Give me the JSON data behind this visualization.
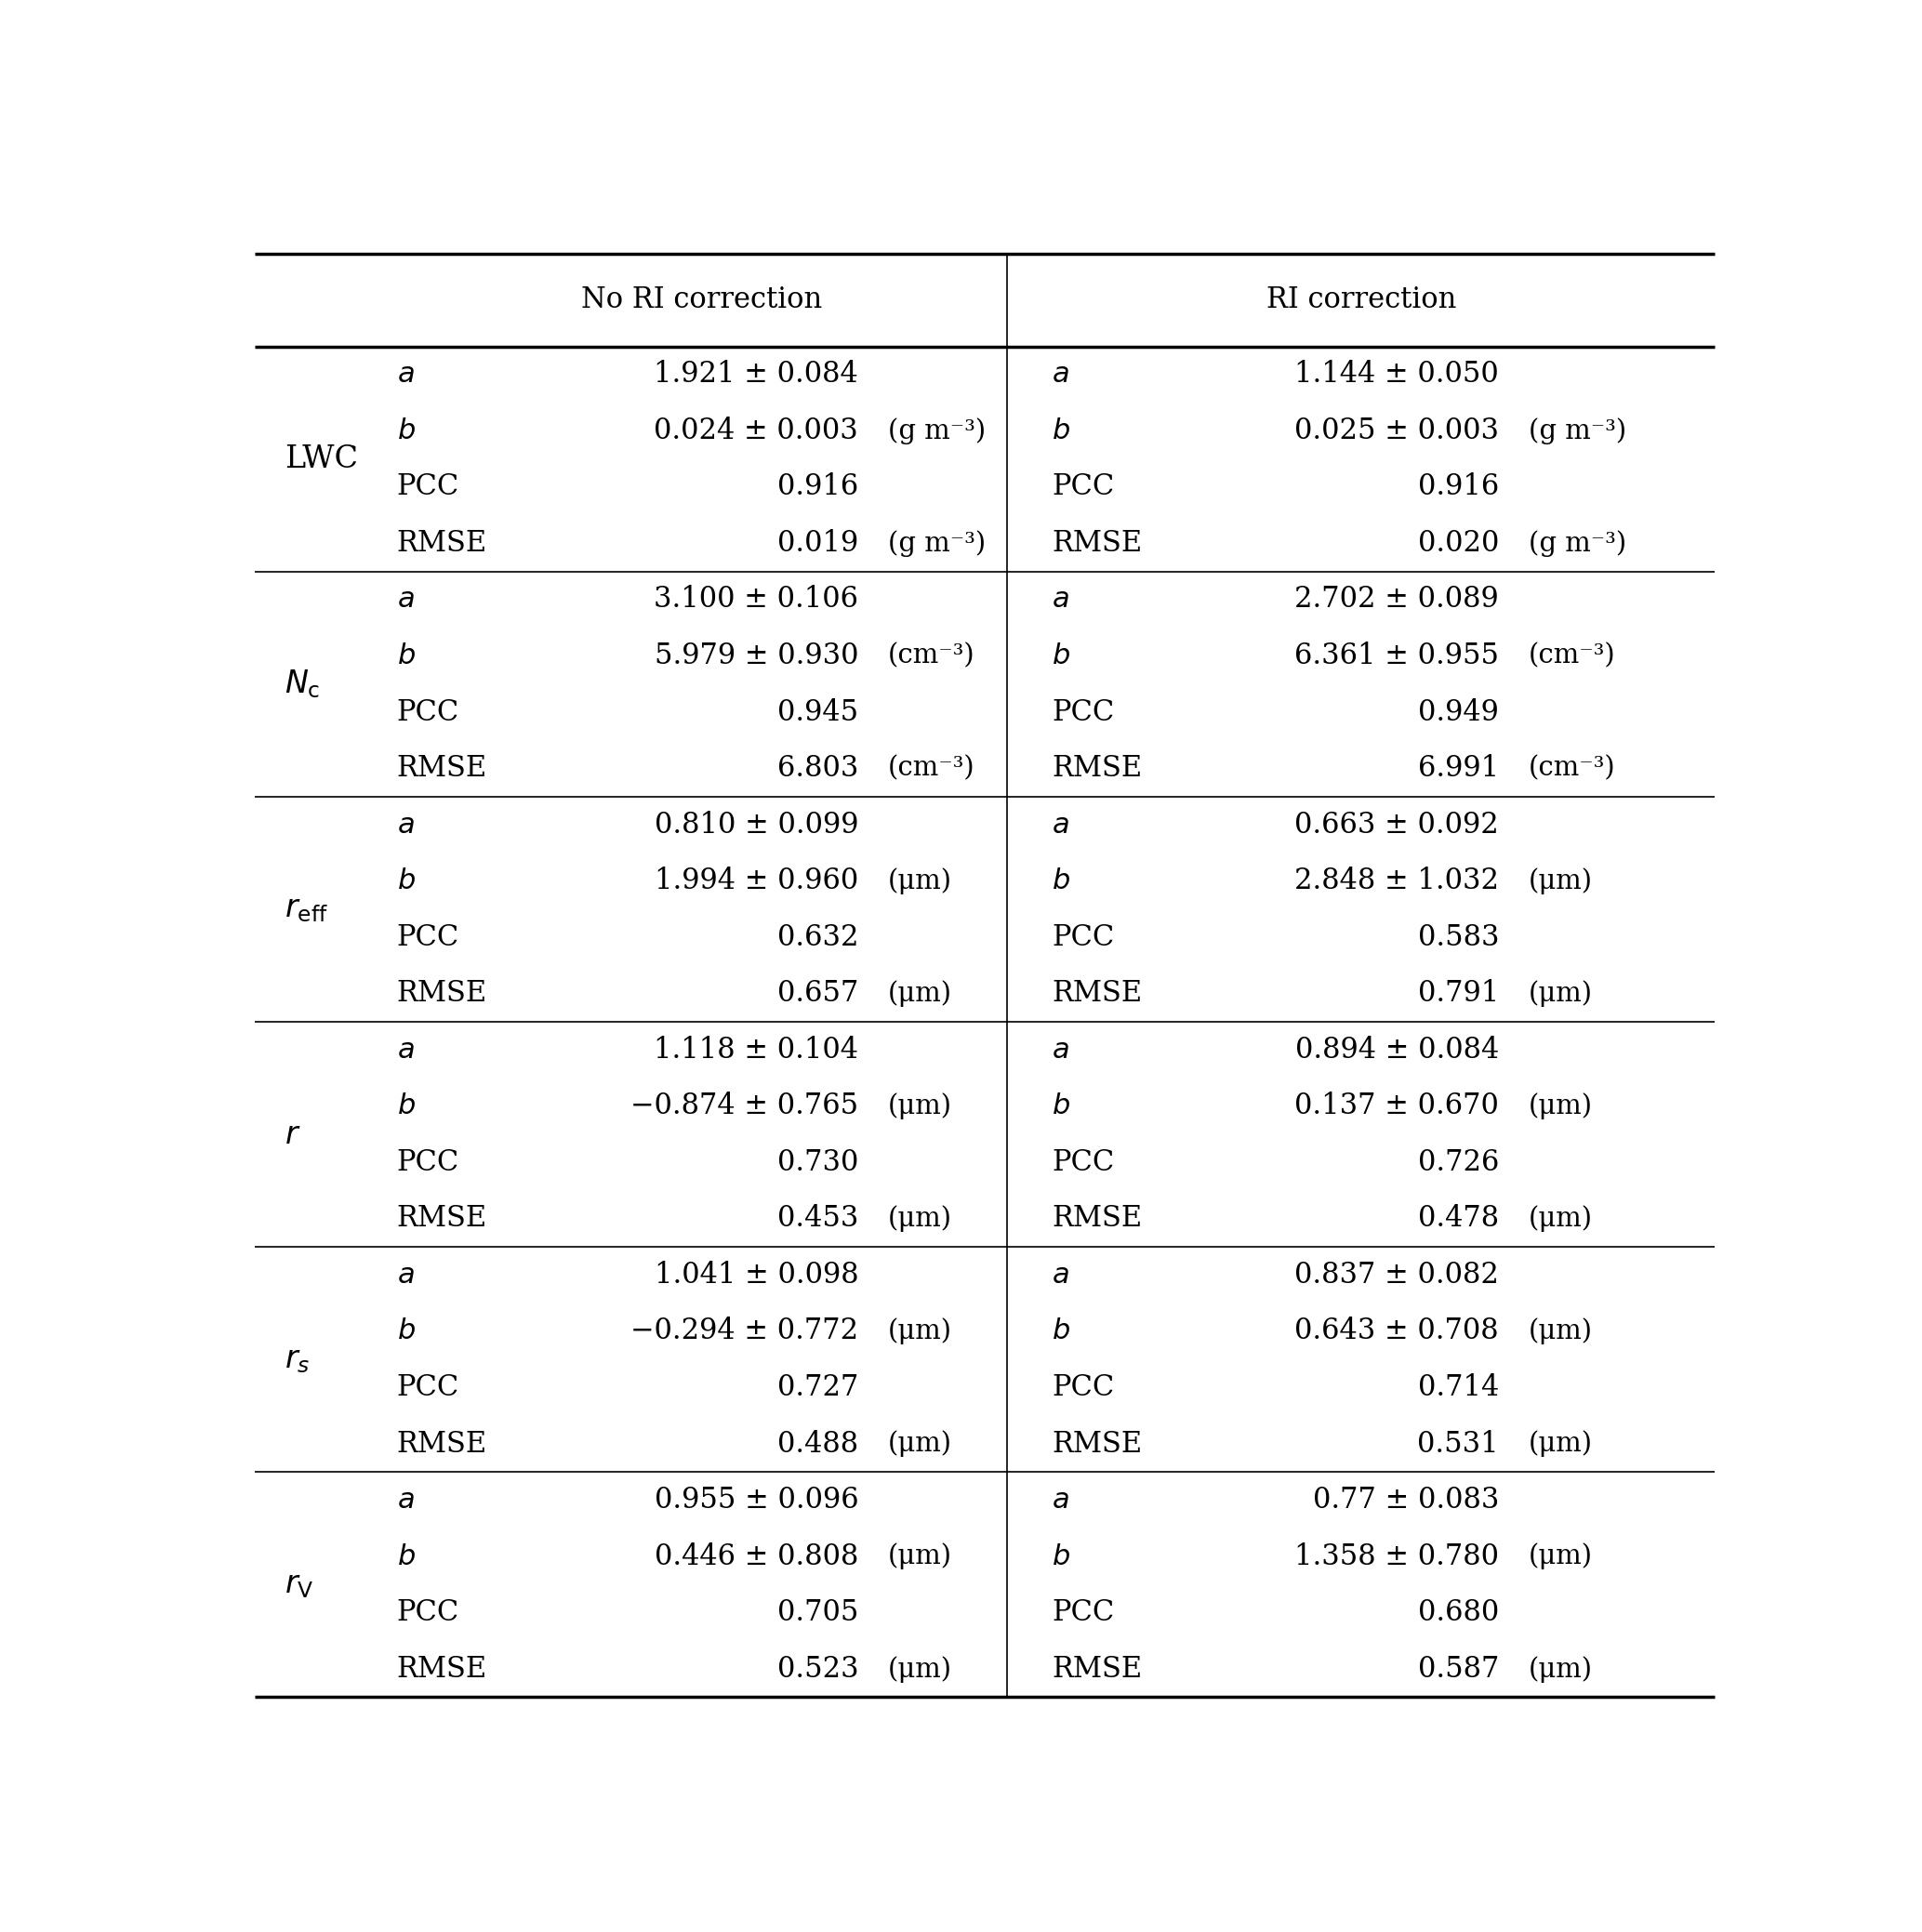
{
  "col_headers": [
    "No RI correction",
    "RI correction"
  ],
  "row_groups": [
    {
      "label": "LWC",
      "label_style": "normal",
      "rows": [
        {
          "param": "a",
          "italic": true,
          "no_ri_val": "1.921 ± 0.084",
          "no_ri_unit": "",
          "ri_val": "1.144 ± 0.050",
          "ri_unit": ""
        },
        {
          "param": "b",
          "italic": true,
          "no_ri_val": "0.024 ± 0.003",
          "no_ri_unit": "(g m⁻³)",
          "ri_val": "0.025 ± 0.003",
          "ri_unit": "(g m⁻³)"
        },
        {
          "param": "PCC",
          "italic": false,
          "no_ri_val": "0.916",
          "no_ri_unit": "",
          "ri_val": "0.916",
          "ri_unit": ""
        },
        {
          "param": "RMSE",
          "italic": false,
          "no_ri_val": "0.019",
          "no_ri_unit": "(g m⁻³)",
          "ri_val": "0.020",
          "ri_unit": "(g m⁻³)"
        }
      ]
    },
    {
      "label": "N_c",
      "label_style": "math",
      "rows": [
        {
          "param": "a",
          "italic": true,
          "no_ri_val": "3.100 ± 0.106",
          "no_ri_unit": "",
          "ri_val": "2.702 ± 0.089",
          "ri_unit": ""
        },
        {
          "param": "b",
          "italic": true,
          "no_ri_val": "5.979 ± 0.930",
          "no_ri_unit": "(cm⁻³)",
          "ri_val": "6.361 ± 0.955",
          "ri_unit": "(cm⁻³)"
        },
        {
          "param": "PCC",
          "italic": false,
          "no_ri_val": "0.945",
          "no_ri_unit": "",
          "ri_val": "0.949",
          "ri_unit": ""
        },
        {
          "param": "RMSE",
          "italic": false,
          "no_ri_val": "6.803",
          "no_ri_unit": "(cm⁻³)",
          "ri_val": "6.991",
          "ri_unit": "(cm⁻³)"
        }
      ]
    },
    {
      "label": "r_eff",
      "label_style": "math",
      "rows": [
        {
          "param": "a",
          "italic": true,
          "no_ri_val": "0.810 ± 0.099",
          "no_ri_unit": "",
          "ri_val": "0.663 ± 0.092",
          "ri_unit": ""
        },
        {
          "param": "b",
          "italic": true,
          "no_ri_val": "1.994 ± 0.960",
          "no_ri_unit": "(μm)",
          "ri_val": "2.848 ± 1.032",
          "ri_unit": "(μm)"
        },
        {
          "param": "PCC",
          "italic": false,
          "no_ri_val": "0.632",
          "no_ri_unit": "",
          "ri_val": "0.583",
          "ri_unit": ""
        },
        {
          "param": "RMSE",
          "italic": false,
          "no_ri_val": "0.657",
          "no_ri_unit": "(μm)",
          "ri_val": "0.791",
          "ri_unit": "(μm)"
        }
      ]
    },
    {
      "label": "r",
      "label_style": "math_italic",
      "rows": [
        {
          "param": "a",
          "italic": true,
          "no_ri_val": "1.118 ± 0.104",
          "no_ri_unit": "",
          "ri_val": "0.894 ± 0.084",
          "ri_unit": ""
        },
        {
          "param": "b",
          "italic": true,
          "no_ri_val": "−0.874 ± 0.765",
          "no_ri_unit": "(μm)",
          "ri_val": "0.137 ± 0.670",
          "ri_unit": "(μm)"
        },
        {
          "param": "PCC",
          "italic": false,
          "no_ri_val": "0.730",
          "no_ri_unit": "",
          "ri_val": "0.726",
          "ri_unit": ""
        },
        {
          "param": "RMSE",
          "italic": false,
          "no_ri_val": "0.453",
          "no_ri_unit": "(μm)",
          "ri_val": "0.478",
          "ri_unit": "(μm)"
        }
      ]
    },
    {
      "label": "r_s",
      "label_style": "math",
      "rows": [
        {
          "param": "a",
          "italic": true,
          "no_ri_val": "1.041 ± 0.098",
          "no_ri_unit": "",
          "ri_val": "0.837 ± 0.082",
          "ri_unit": ""
        },
        {
          "param": "b",
          "italic": true,
          "no_ri_val": "−0.294 ± 0.772",
          "no_ri_unit": "(μm)",
          "ri_val": "0.643 ± 0.708",
          "ri_unit": "(μm)"
        },
        {
          "param": "PCC",
          "italic": false,
          "no_ri_val": "0.727",
          "no_ri_unit": "",
          "ri_val": "0.714",
          "ri_unit": ""
        },
        {
          "param": "RMSE",
          "italic": false,
          "no_ri_val": "0.488",
          "no_ri_unit": "(μm)",
          "ri_val": "0.531",
          "ri_unit": "(μm)"
        }
      ]
    },
    {
      "label": "r_V",
      "label_style": "math",
      "rows": [
        {
          "param": "a",
          "italic": true,
          "no_ri_val": "0.955 ± 0.096",
          "no_ri_unit": "",
          "ri_val": "0.77 ± 0.083",
          "ri_unit": ""
        },
        {
          "param": "b",
          "italic": true,
          "no_ri_val": "0.446 ± 0.808",
          "no_ri_unit": "(μm)",
          "ri_val": "1.358 ± 0.780",
          "ri_unit": "(μm)"
        },
        {
          "param": "PCC",
          "italic": false,
          "no_ri_val": "0.705",
          "no_ri_unit": "",
          "ri_val": "0.680",
          "ri_unit": ""
        },
        {
          "param": "RMSE",
          "italic": false,
          "no_ri_val": "0.523",
          "no_ri_unit": "(μm)",
          "ri_val": "0.587",
          "ri_unit": "(μm)"
        }
      ]
    }
  ],
  "bg_color": "#ffffff",
  "text_color": "#000000",
  "line_color": "#000000",
  "fontsize": 22,
  "header_fontsize": 22
}
